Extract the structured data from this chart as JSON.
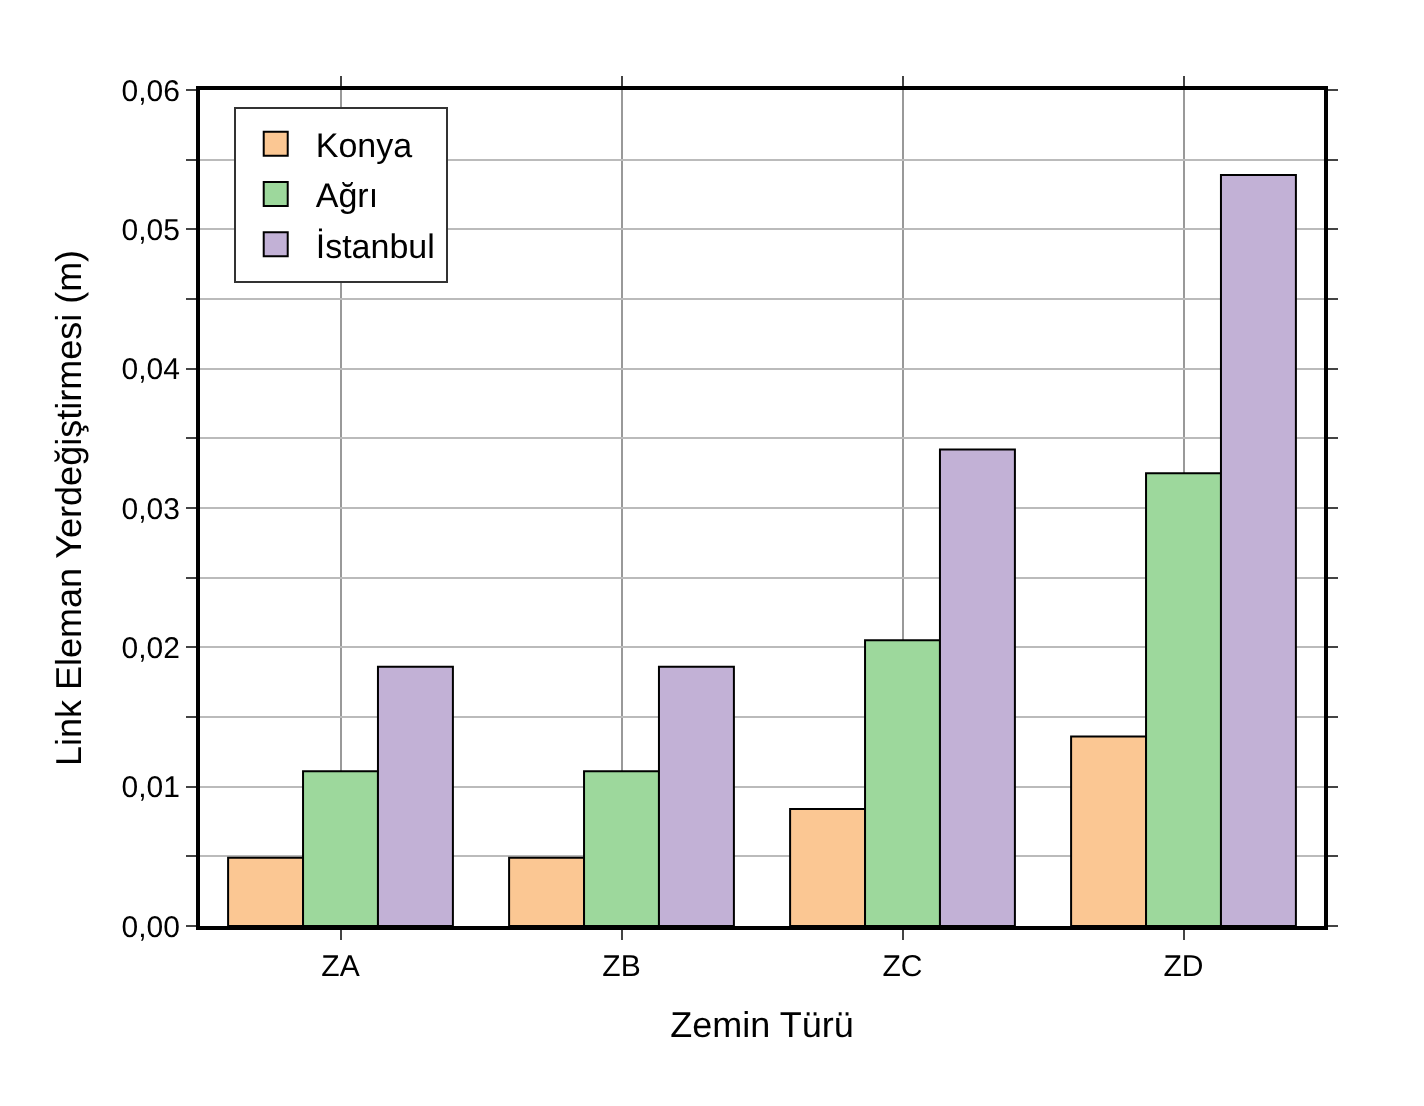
{
  "chart_data": {
    "type": "bar",
    "xlabel": "Zemin Türü",
    "ylabel": "Link Eleman Yerdeğiştirmesi (m)",
    "categories": [
      "ZA",
      "ZB",
      "ZC",
      "ZD"
    ],
    "series": [
      {
        "name": "Konya",
        "color": "#fbc793",
        "values": [
          0.0049,
          0.0049,
          0.0084,
          0.0136
        ]
      },
      {
        "name": "Ağrı",
        "color": "#9dd89c",
        "values": [
          0.0111,
          0.0111,
          0.0205,
          0.0325
        ]
      },
      {
        "name": "İstanbul",
        "color": "#c2b1d6",
        "values": [
          0.0186,
          0.0186,
          0.0342,
          0.0539
        ]
      }
    ],
    "ylim": [
      0,
      0.06
    ],
    "yticks": [
      {
        "value": 0,
        "label": "0,00"
      },
      {
        "value": 0.005,
        "label": null
      },
      {
        "value": 0.01,
        "label": "0,01"
      },
      {
        "value": 0.015,
        "label": null
      },
      {
        "value": 0.02,
        "label": "0,02"
      },
      {
        "value": 0.025,
        "label": null
      },
      {
        "value": 0.03,
        "label": "0,03"
      },
      {
        "value": 0.035,
        "label": null
      },
      {
        "value": 0.04,
        "label": "0,04"
      },
      {
        "value": 0.045,
        "label": null
      },
      {
        "value": 0.05,
        "label": "0,05"
      },
      {
        "value": 0.055,
        "label": null
      },
      {
        "value": 0.06,
        "label": "0,06"
      }
    ],
    "grid": true,
    "legend": "top left"
  }
}
